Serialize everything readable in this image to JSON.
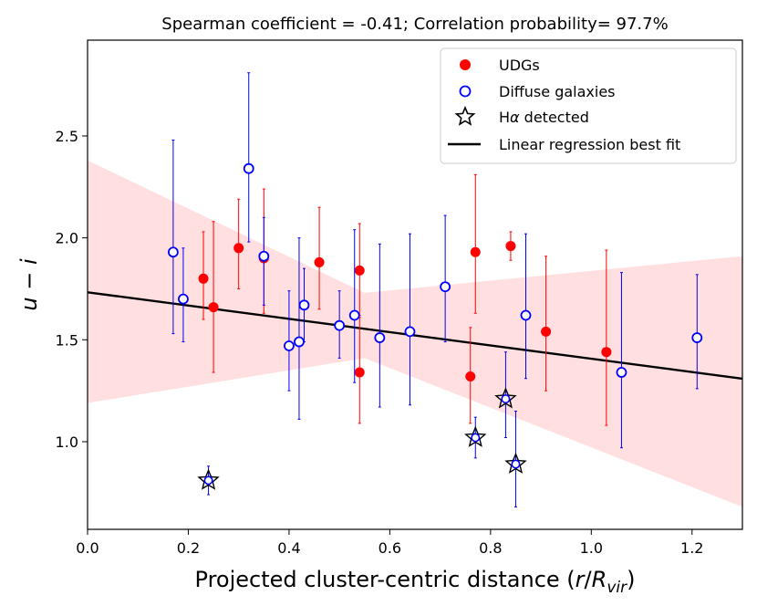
{
  "chart_data": {
    "type": "scatter",
    "title": "Spearman coefficient = -0.41;  Correlation probability= 97.7%",
    "xlabel": "Projected cluster-centric distance (r/R_vir)",
    "ylabel": "u - i",
    "xlim": [
      0.0,
      1.3
    ],
    "ylim": [
      0.57,
      2.97
    ],
    "xticks": [
      "0.0",
      "0.2",
      "0.4",
      "0.6",
      "0.8",
      "1.0",
      "1.2"
    ],
    "yticks": [
      "1.0",
      "1.5",
      "2.0",
      "2.5"
    ],
    "legend": {
      "placement": "top-right",
      "entries": [
        "UDGs",
        "Diffuse galaxies",
        "Hα detected",
        "Linear regression best fit"
      ]
    },
    "colors": {
      "udg": "#ff0000",
      "diffuse": "#0000ff",
      "regression": "#000000",
      "band": "#ffc9cc"
    },
    "regression": {
      "intercept": 1.733,
      "slope": -0.326
    },
    "confidence_band": {
      "x": [
        0.0,
        0.55,
        1.3
      ],
      "upper": [
        2.38,
        1.73,
        1.91
      ],
      "lower": [
        1.19,
        1.41,
        0.68
      ]
    },
    "series": [
      {
        "name": "UDGs",
        "points": [
          {
            "x": 0.23,
            "y": 1.8,
            "lo": 1.6,
            "hi": 2.03
          },
          {
            "x": 0.25,
            "y": 1.66,
            "lo": 1.34,
            "hi": 2.08
          },
          {
            "x": 0.3,
            "y": 1.95,
            "lo": 1.75,
            "hi": 2.19
          },
          {
            "x": 0.35,
            "y": 1.9,
            "lo": 1.63,
            "hi": 2.24
          },
          {
            "x": 0.46,
            "y": 1.88,
            "lo": 1.65,
            "hi": 2.15
          },
          {
            "x": 0.54,
            "y": 1.84,
            "lo": 1.62,
            "hi": 2.07
          },
          {
            "x": 0.54,
            "y": 1.34,
            "lo": 1.09,
            "hi": 1.61
          },
          {
            "x": 0.76,
            "y": 1.32,
            "lo": 1.09,
            "hi": 1.56
          },
          {
            "x": 0.77,
            "y": 1.93,
            "lo": 1.63,
            "hi": 2.31
          },
          {
            "x": 0.84,
            "y": 1.96,
            "lo": 1.89,
            "hi": 2.03
          },
          {
            "x": 0.91,
            "y": 1.54,
            "lo": 1.25,
            "hi": 1.91
          },
          {
            "x": 1.03,
            "y": 1.44,
            "lo": 1.08,
            "hi": 1.94
          }
        ]
      },
      {
        "name": "Diffuse galaxies",
        "points": [
          {
            "x": 0.17,
            "y": 1.93,
            "lo": 1.53,
            "hi": 2.48
          },
          {
            "x": 0.19,
            "y": 1.7,
            "lo": 1.49,
            "hi": 1.95
          },
          {
            "x": 0.32,
            "y": 2.34,
            "lo": 1.98,
            "hi": 2.81
          },
          {
            "x": 0.35,
            "y": 1.91,
            "lo": 1.67,
            "hi": 2.1
          },
          {
            "x": 0.4,
            "y": 1.47,
            "lo": 1.25,
            "hi": 1.74
          },
          {
            "x": 0.42,
            "y": 1.49,
            "lo": 1.11,
            "hi": 2.0
          },
          {
            "x": 0.43,
            "y": 1.67,
            "lo": 1.49,
            "hi": 1.85
          },
          {
            "x": 0.5,
            "y": 1.57,
            "lo": 1.41,
            "hi": 1.74
          },
          {
            "x": 0.53,
            "y": 1.62,
            "lo": 1.29,
            "hi": 2.04
          },
          {
            "x": 0.58,
            "y": 1.51,
            "lo": 1.17,
            "hi": 1.97
          },
          {
            "x": 0.64,
            "y": 1.54,
            "lo": 1.18,
            "hi": 2.02
          },
          {
            "x": 0.71,
            "y": 1.76,
            "lo": 1.49,
            "hi": 2.11
          },
          {
            "x": 0.87,
            "y": 1.62,
            "lo": 1.31,
            "hi": 2.02
          },
          {
            "x": 1.06,
            "y": 1.34,
            "lo": 0.97,
            "hi": 1.83
          },
          {
            "x": 1.21,
            "y": 1.51,
            "lo": 1.26,
            "hi": 1.82
          }
        ]
      },
      {
        "name": "Hα detected",
        "points": [
          {
            "x": 0.24,
            "y": 0.81,
            "lo": 0.74,
            "hi": 0.88
          },
          {
            "x": 0.77,
            "y": 1.02,
            "lo": 0.92,
            "hi": 1.12
          },
          {
            "x": 0.83,
            "y": 1.21,
            "lo": 1.02,
            "hi": 1.44
          },
          {
            "x": 0.85,
            "y": 0.89,
            "lo": 0.68,
            "hi": 1.15
          }
        ]
      }
    ]
  }
}
